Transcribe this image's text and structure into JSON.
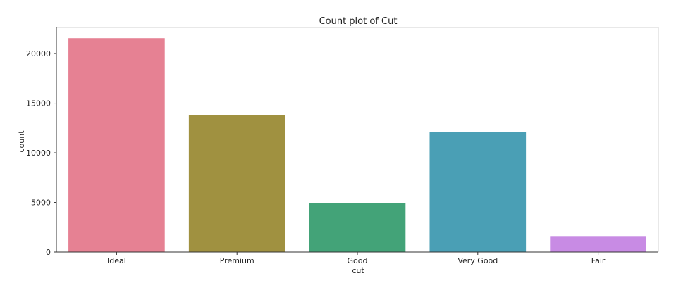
{
  "chart_data": {
    "type": "bar",
    "title": "Count plot of Cut",
    "xlabel": "cut",
    "ylabel": "count",
    "categories": [
      "Ideal",
      "Premium",
      "Good",
      "Very Good",
      "Fair"
    ],
    "values": [
      21551,
      13791,
      4906,
      12082,
      1610
    ],
    "colors": [
      "#e68193",
      "#a09140",
      "#43a378",
      "#4a9fb5",
      "#c88be4"
    ],
    "ylim": [
      0,
      22630
    ],
    "yticks": [
      0,
      5000,
      10000,
      15000,
      20000
    ],
    "ytick_labels": [
      "0",
      "5000",
      "10000",
      "15000",
      "20000"
    ],
    "grid": false,
    "legend": "none"
  }
}
